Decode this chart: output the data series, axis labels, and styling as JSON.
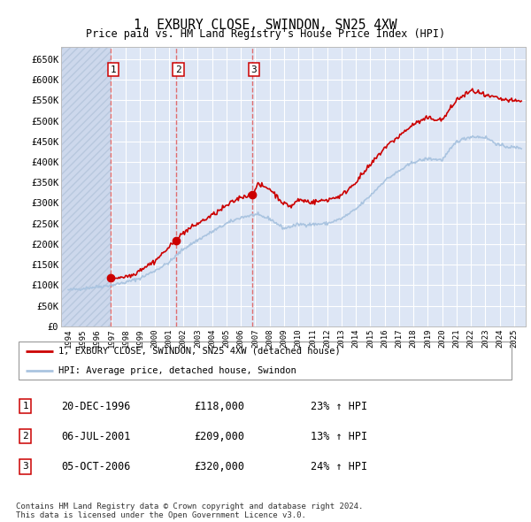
{
  "title": "1, EXBURY CLOSE, SWINDON, SN25 4XW",
  "subtitle": "Price paid vs. HM Land Registry's House Price Index (HPI)",
  "ylabel_ticks": [
    "£0",
    "£50K",
    "£100K",
    "£150K",
    "£200K",
    "£250K",
    "£300K",
    "£350K",
    "£400K",
    "£450K",
    "£500K",
    "£550K",
    "£600K",
    "£650K"
  ],
  "ylim": [
    0,
    680000
  ],
  "ytick_vals": [
    0,
    50000,
    100000,
    150000,
    200000,
    250000,
    300000,
    350000,
    400000,
    450000,
    500000,
    550000,
    600000,
    650000
  ],
  "sale_dates": [
    1996.97,
    2001.51,
    2006.76
  ],
  "sale_prices": [
    118000,
    209000,
    320000
  ],
  "sale_labels": [
    "1",
    "2",
    "3"
  ],
  "sale_date_strs": [
    "20-DEC-1996",
    "06-JUL-2001",
    "05-OCT-2006"
  ],
  "sale_price_strs": [
    "£118,000",
    "£209,000",
    "£320,000"
  ],
  "sale_hpi_strs": [
    "23% ↑ HPI",
    "13% ↑ HPI",
    "24% ↑ HPI"
  ],
  "legend_line1": "1, EXBURY CLOSE, SWINDON, SN25 4XW (detached house)",
  "legend_line2": "HPI: Average price, detached house, Swindon",
  "footnote": "Contains HM Land Registry data © Crown copyright and database right 2024.\nThis data is licensed under the Open Government Licence v3.0.",
  "hpi_color": "#aac4e0",
  "price_color": "#cc0000",
  "plot_bg_color": "#dde6f5",
  "hatch_bg_color": "#cdd8ec",
  "grid_color": "#ffffff",
  "sale_line_color": "#e06060",
  "box_edge_color": "#cc0000",
  "xlim_start": 1993.5,
  "xlim_end": 2025.8,
  "xtick_years": [
    1994,
    1995,
    1996,
    1997,
    1998,
    1999,
    2000,
    2001,
    2002,
    2003,
    2004,
    2005,
    2006,
    2007,
    2008,
    2009,
    2010,
    2011,
    2012,
    2013,
    2014,
    2015,
    2016,
    2017,
    2018,
    2019,
    2020,
    2021,
    2022,
    2023,
    2024,
    2025
  ],
  "hpi_anchors_x": [
    1994,
    1995,
    1996,
    1997,
    1998,
    1999,
    2000,
    2001,
    2002,
    2003,
    2004,
    2005,
    2006,
    2007,
    2008,
    2009,
    2010,
    2011,
    2012,
    2013,
    2014,
    2015,
    2016,
    2017,
    2018,
    2019,
    2020,
    2021,
    2022,
    2023,
    2024,
    2025
  ],
  "hpi_anchors_y": [
    88000,
    92000,
    96000,
    100000,
    107000,
    117000,
    135000,
    155000,
    188000,
    210000,
    230000,
    250000,
    265000,
    272000,
    262000,
    238000,
    248000,
    248000,
    250000,
    262000,
    285000,
    318000,
    355000,
    378000,
    400000,
    408000,
    405000,
    450000,
    462000,
    460000,
    440000,
    435000
  ],
  "price_anchors_x": [
    1996.97,
    1997.3,
    1997.8,
    1998.5,
    1999,
    2000,
    2001,
    2001.51,
    2002,
    2003,
    2004,
    2005,
    2006,
    2006.76,
    2007.2,
    2008,
    2009,
    2009.5,
    2010,
    2011,
    2012,
    2013,
    2014,
    2015,
    2016,
    2017,
    2018,
    2019,
    2020,
    2021,
    2022,
    2022.5,
    2023,
    2023.5,
    2024,
    2025
  ],
  "price_anchors_y": [
    118000,
    118500,
    120000,
    125000,
    138000,
    158000,
    192000,
    209000,
    228000,
    250000,
    270000,
    293000,
    315000,
    320000,
    345000,
    335000,
    298000,
    292000,
    308000,
    302000,
    308000,
    318000,
    352000,
    392000,
    435000,
    463000,
    492000,
    507000,
    502000,
    551000,
    573000,
    570000,
    560000,
    558000,
    553000,
    548000
  ]
}
